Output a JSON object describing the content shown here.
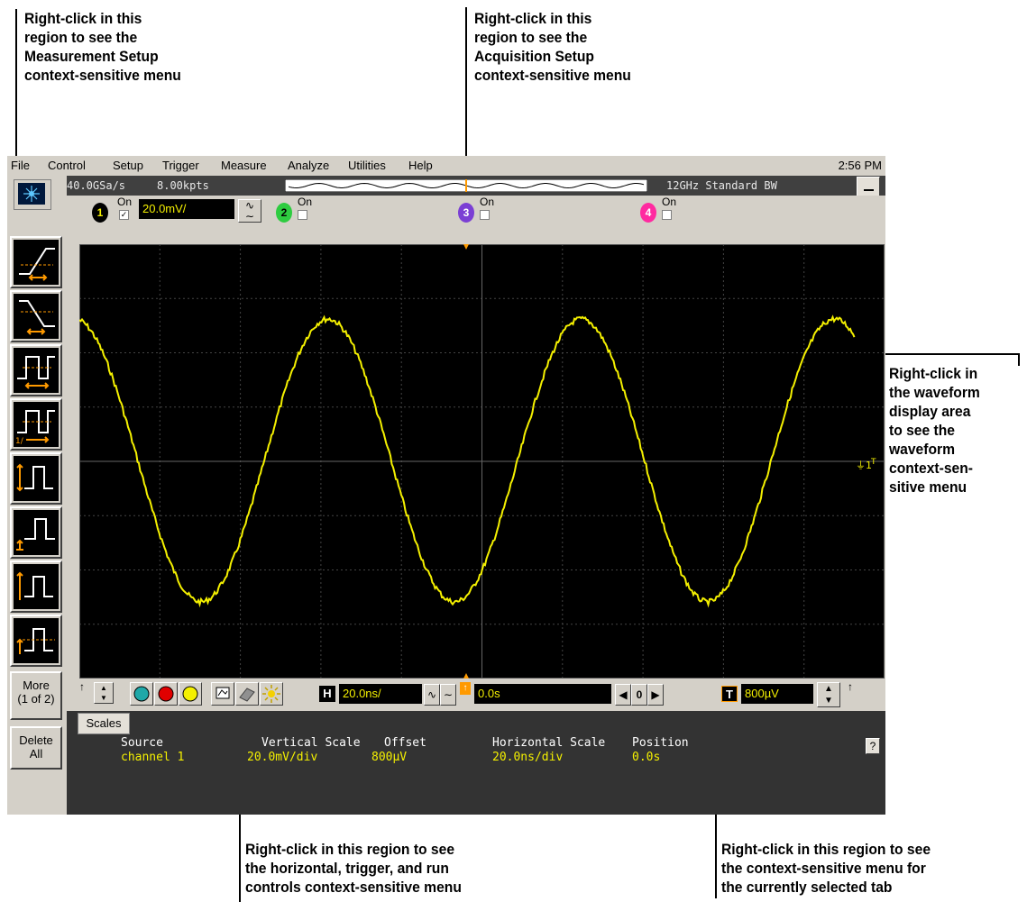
{
  "callouts": {
    "measurement": "Right-click in this\nregion to see the\nMeasurement Setup\ncontext-sensitive menu",
    "acquisition": "Right-click in this\nregion to see the\nAcquisition Setup\ncontext-sensitive menu",
    "waveform": "Right-click in\nthe waveform\ndisplay area\nto see the\nwaveform\ncontext-sen-\nsitive menu",
    "horizontal": "Right-click in this region to see\nthe horizontal, trigger, and run\ncontrols context-sensitive menu",
    "tab": "Right-click in this region to see\nthe context-sensitive menu for\nthe currently selected tab"
  },
  "menubar": {
    "items": [
      {
        "label": "File"
      },
      {
        "label": "Control"
      },
      {
        "label": "Setup"
      },
      {
        "label": "Trigger"
      },
      {
        "label": "Measure"
      },
      {
        "label": "Analyze"
      },
      {
        "label": "Utilities"
      },
      {
        "label": "Help"
      }
    ],
    "clock": "2:56 PM"
  },
  "acquisition": {
    "sample_rate": "40.0GSa/s",
    "memory_depth": "8.00kpts",
    "bandwidth": "12GHz Standard BW"
  },
  "channels": [
    {
      "number": "1",
      "on_label": "On",
      "checked": true,
      "scale": "20.0mV/",
      "color": "#f4f000"
    },
    {
      "number": "2",
      "on_label": "On",
      "checked": false,
      "color": "#2ecc40"
    },
    {
      "number": "3",
      "on_label": "On",
      "checked": false,
      "color": "#7b3fd4"
    },
    {
      "number": "4",
      "on_label": "On",
      "checked": false,
      "color": "#ff2aa0"
    }
  ],
  "sidebar": {
    "more_label": "More\n(1 of 2)",
    "delete_label": "Delete\nAll"
  },
  "controls": {
    "horizontal_label": "H",
    "horizontal_scale": "20.0ns/",
    "delay": "0.0s",
    "zero_label": "0",
    "trigger_label": "T",
    "trigger_level": "800µV"
  },
  "tabs": {
    "active": "Scales",
    "help": "?",
    "headers": [
      "Source",
      "Vertical Scale",
      "Offset",
      "Horizontal Scale",
      "Position"
    ],
    "values": [
      "channel 1",
      "20.0mV/div",
      "800µV",
      "20.0ns/div",
      "0.0s"
    ]
  },
  "colors": {
    "trace": "#f4f000",
    "trigger_marker": "#ff9a00",
    "graticule": "#555555"
  },
  "icons": [
    "run-icon",
    "stop-icon",
    "single-icon",
    "autoscale-icon",
    "clear-display-icon",
    "brightness-icon"
  ]
}
